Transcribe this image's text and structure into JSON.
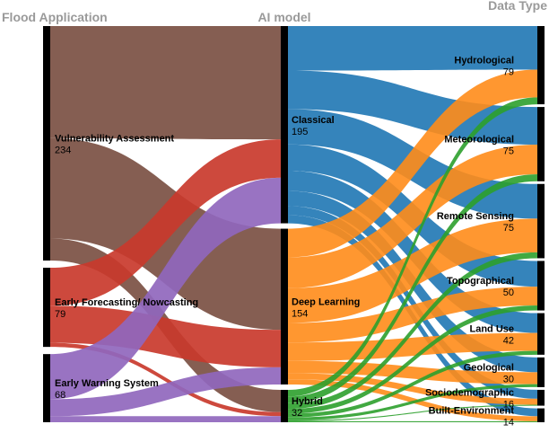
{
  "columns": {
    "left": "Flood Application",
    "middle": "AI model",
    "right": "Data Type"
  },
  "nodes": {
    "application": [
      {
        "key": "va",
        "label": "Vulnerability Assessment",
        "value": "234",
        "color": "#7b5043"
      },
      {
        "key": "efn",
        "label": "Early Forecasting/ Nowcasting",
        "value": "79",
        "color": "#c9392d"
      },
      {
        "key": "ews",
        "label": "Early Warning System",
        "value": "68",
        "color": "#9067bd"
      }
    ],
    "model": [
      {
        "key": "cls",
        "label": "Classical",
        "value": "195",
        "color": "#1f77b4"
      },
      {
        "key": "dl",
        "label": "Deep Learning",
        "value": "154",
        "color": "#ff8c1a"
      },
      {
        "key": "hyb",
        "label": "Hybrid",
        "value": "32",
        "color": "#2ca02c"
      }
    ],
    "data": [
      {
        "key": "hyd",
        "label": "Hydrological",
        "value": "79"
      },
      {
        "key": "met",
        "label": "Meteorological",
        "value": "75"
      },
      {
        "key": "rs",
        "label": "Remote Sensing",
        "value": "75"
      },
      {
        "key": "top",
        "label": "Topographical",
        "value": "50"
      },
      {
        "key": "lu",
        "label": "Land Use",
        "value": "42"
      },
      {
        "key": "geo",
        "label": "Geological",
        "value": "30"
      },
      {
        "key": "soc",
        "label": "Sociodemographic",
        "value": "16"
      },
      {
        "key": "be",
        "label": "Built-Environment",
        "value": "14"
      }
    ]
  },
  "links_app_model": [
    {
      "source": "va",
      "target": "cls",
      "value": 112
    },
    {
      "source": "va",
      "target": "dl",
      "value": 100
    },
    {
      "source": "va",
      "target": "hyb",
      "value": 22
    },
    {
      "source": "efn",
      "target": "cls",
      "value": 38
    },
    {
      "source": "efn",
      "target": "dl",
      "value": 37
    },
    {
      "source": "efn",
      "target": "hyb",
      "value": 4
    },
    {
      "source": "ews",
      "target": "cls",
      "value": 45
    },
    {
      "source": "ews",
      "target": "dl",
      "value": 17
    },
    {
      "source": "ews",
      "target": "hyb",
      "value": 6
    }
  ],
  "links_model_data": [
    {
      "source": "cls",
      "target": "hyd",
      "value": 44
    },
    {
      "source": "cls",
      "target": "met",
      "value": 38
    },
    {
      "source": "cls",
      "target": "rs",
      "value": 35
    },
    {
      "source": "cls",
      "target": "top",
      "value": 26
    },
    {
      "source": "cls",
      "target": "lu",
      "value": 20
    },
    {
      "source": "cls",
      "target": "geo",
      "value": 15
    },
    {
      "source": "cls",
      "target": "soc",
      "value": 9
    },
    {
      "source": "cls",
      "target": "be",
      "value": 8
    },
    {
      "source": "dl",
      "target": "hyd",
      "value": 28
    },
    {
      "source": "dl",
      "target": "met",
      "value": 30
    },
    {
      "source": "dl",
      "target": "rs",
      "value": 34
    },
    {
      "source": "dl",
      "target": "top",
      "value": 19
    },
    {
      "source": "dl",
      "target": "lu",
      "value": 18
    },
    {
      "source": "dl",
      "target": "geo",
      "value": 12
    },
    {
      "source": "dl",
      "target": "soc",
      "value": 6
    },
    {
      "source": "dl",
      "target": "be",
      "value": 5
    },
    {
      "source": "hyb",
      "target": "hyd",
      "value": 7
    },
    {
      "source": "hyb",
      "target": "met",
      "value": 7
    },
    {
      "source": "hyb",
      "target": "rs",
      "value": 6
    },
    {
      "source": "hyb",
      "target": "top",
      "value": 5
    },
    {
      "source": "hyb",
      "target": "lu",
      "value": 4
    },
    {
      "source": "hyb",
      "target": "geo",
      "value": 3
    },
    {
      "source": "hyb",
      "target": "soc",
      "value": 1
    },
    {
      "source": "hyb",
      "target": "be",
      "value": 1
    }
  ]
}
